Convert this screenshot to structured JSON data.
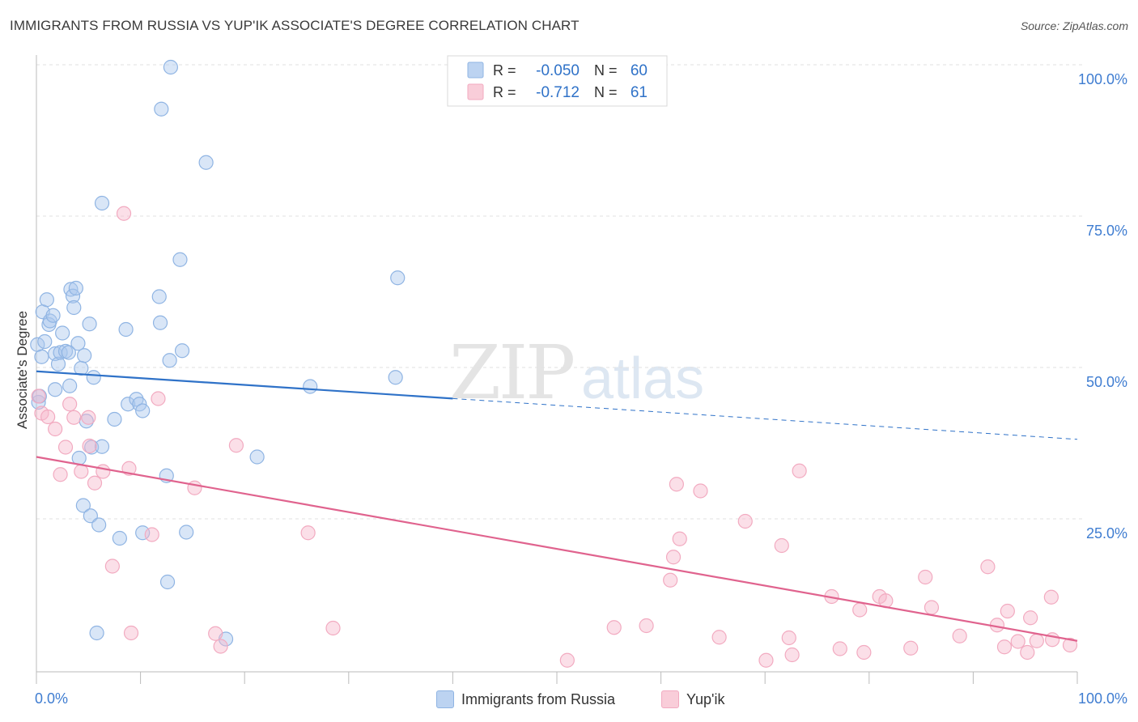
{
  "title": "IMMIGRANTS FROM RUSSIA VS YUP'IK ASSOCIATE'S DEGREE CORRELATION CHART",
  "source": "Source: ZipAtlas.com",
  "watermark": {
    "zip": "ZIP",
    "atlas": "atlas"
  },
  "chart_data": {
    "type": "scatter",
    "title": "IMMIGRANTS FROM RUSSIA VS YUP'IK ASSOCIATE'S DEGREE CORRELATION CHART",
    "xlabel": "",
    "ylabel": "Associate's Degree",
    "xlim": [
      0,
      100
    ],
    "ylim": [
      0,
      100
    ],
    "x_tick_labels": [
      "0.0%",
      "100.0%"
    ],
    "y_ticks": [
      25,
      50,
      75,
      100
    ],
    "y_tick_labels": [
      "25.0%",
      "50.0%",
      "75.0%",
      "100.0%"
    ],
    "grid": true,
    "stats": [
      {
        "r_label": "R =",
        "r": "-0.050",
        "n_label": "N =",
        "n": "60"
      },
      {
        "r_label": "R =",
        "r": "-0.712",
        "n_label": "N =",
        "n": "61"
      }
    ],
    "series": [
      {
        "name": "Immigrants from Russia",
        "color": "#8fb4e3",
        "line_color": "#2f72c8",
        "trend": {
          "x0": 0,
          "y0": 49.5,
          "x_solid_end": 40,
          "x1": 100,
          "y1": 38.3
        },
        "points": [
          [
            0.1,
            53.9
          ],
          [
            0.2,
            44.4
          ],
          [
            0.3,
            45.4
          ],
          [
            0.5,
            51.9
          ],
          [
            0.6,
            59.3
          ],
          [
            0.8,
            54.4
          ],
          [
            1,
            61.3
          ],
          [
            1.2,
            57.2
          ],
          [
            1.3,
            57.8
          ],
          [
            1.6,
            58.7
          ],
          [
            1.8,
            46.5
          ],
          [
            1.8,
            52.4
          ],
          [
            2.1,
            50.7
          ],
          [
            2.3,
            52.6
          ],
          [
            2.5,
            55.8
          ],
          [
            2.8,
            52.8
          ],
          [
            3.1,
            52.6
          ],
          [
            3.2,
            47.1
          ],
          [
            3.3,
            63.0
          ],
          [
            3.5,
            61.9
          ],
          [
            3.6,
            60.0
          ],
          [
            3.8,
            63.2
          ],
          [
            4.0,
            54.1
          ],
          [
            4.1,
            35.2
          ],
          [
            4.3,
            50.0
          ],
          [
            4.5,
            27.4
          ],
          [
            4.6,
            52.1
          ],
          [
            4.8,
            41.3
          ],
          [
            5.1,
            57.3
          ],
          [
            5.2,
            25.7
          ],
          [
            5.3,
            37.0
          ],
          [
            5.5,
            48.5
          ],
          [
            5.8,
            6.4
          ],
          [
            6.0,
            24.2
          ],
          [
            6.3,
            37.1
          ],
          [
            6.3,
            77.2
          ],
          [
            7.5,
            41.6
          ],
          [
            8.0,
            22.0
          ],
          [
            8.6,
            56.4
          ],
          [
            8.8,
            44.1
          ],
          [
            9.6,
            44.9
          ],
          [
            9.9,
            44.1
          ],
          [
            10.2,
            22.9
          ],
          [
            10.2,
            43.0
          ],
          [
            11.8,
            61.8
          ],
          [
            11.9,
            57.5
          ],
          [
            12.0,
            92.7
          ],
          [
            12.6,
            14.8
          ],
          [
            12.5,
            32.3
          ],
          [
            12.8,
            51.3
          ],
          [
            12.9,
            99.6
          ],
          [
            13.8,
            67.9
          ],
          [
            14.0,
            52.9
          ],
          [
            14.4,
            23.0
          ],
          [
            16.3,
            83.9
          ],
          [
            18.2,
            5.4
          ],
          [
            21.2,
            35.4
          ],
          [
            26.3,
            47.0
          ],
          [
            34.5,
            48.5
          ],
          [
            34.7,
            64.9
          ]
        ]
      },
      {
        "name": "Yup'ik",
        "color": "#f2aac0",
        "line_color": "#e0638e",
        "trend": {
          "x0": 0,
          "y0": 35.4,
          "x1": 100,
          "y1": 5.1
        },
        "points": [
          [
            0.2,
            45.4
          ],
          [
            0.5,
            42.6
          ],
          [
            1.1,
            42.0
          ],
          [
            1.8,
            40.0
          ],
          [
            2.3,
            32.5
          ],
          [
            2.8,
            37.0
          ],
          [
            3.2,
            44.1
          ],
          [
            3.6,
            41.9
          ],
          [
            4.3,
            33.0
          ],
          [
            5.0,
            41.9
          ],
          [
            5.1,
            37.2
          ],
          [
            5.6,
            31.1
          ],
          [
            6.4,
            33.0
          ],
          [
            7.3,
            17.4
          ],
          [
            8.4,
            75.5
          ],
          [
            8.9,
            33.5
          ],
          [
            9.1,
            6.4
          ],
          [
            11.1,
            22.6
          ],
          [
            11.7,
            45.0
          ],
          [
            15.2,
            30.3
          ],
          [
            17.2,
            6.3
          ],
          [
            17.7,
            4.2
          ],
          [
            19.2,
            37.3
          ],
          [
            26.1,
            22.9
          ],
          [
            28.5,
            7.2
          ],
          [
            51.0,
            1.9
          ],
          [
            55.5,
            7.3
          ],
          [
            58.6,
            7.6
          ],
          [
            60.9,
            15.1
          ],
          [
            61.2,
            18.9
          ],
          [
            61.5,
            30.9
          ],
          [
            61.8,
            21.9
          ],
          [
            63.8,
            29.8
          ],
          [
            65.6,
            5.7
          ],
          [
            68.1,
            24.8
          ],
          [
            70.1,
            1.9
          ],
          [
            71.6,
            20.8
          ],
          [
            72.3,
            5.6
          ],
          [
            72.6,
            2.8
          ],
          [
            73.3,
            33.1
          ],
          [
            76.4,
            12.4
          ],
          [
            77.2,
            3.8
          ],
          [
            79.1,
            10.2
          ],
          [
            79.5,
            3.2
          ],
          [
            81.0,
            12.4
          ],
          [
            81.6,
            11.7
          ],
          [
            84.0,
            3.9
          ],
          [
            85.4,
            15.6
          ],
          [
            86.0,
            10.6
          ],
          [
            88.7,
            5.9
          ],
          [
            91.4,
            17.3
          ],
          [
            92.3,
            7.7
          ],
          [
            93.0,
            4.1
          ],
          [
            93.3,
            10.0
          ],
          [
            94.3,
            5.0
          ],
          [
            95.2,
            3.2
          ],
          [
            95.5,
            8.9
          ],
          [
            96.1,
            5.1
          ],
          [
            97.5,
            12.3
          ],
          [
            97.6,
            5.3
          ],
          [
            99.3,
            4.4
          ]
        ]
      }
    ]
  }
}
